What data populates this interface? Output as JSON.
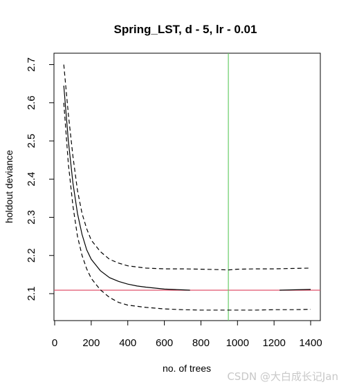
{
  "chart_data": {
    "type": "line",
    "title": "Spring_LST, d - 5, lr - 0.01",
    "xlabel": "no. of trees",
    "ylabel": "holdout deviance",
    "xlim": [
      0,
      1450
    ],
    "ylim": [
      2.08,
      2.7
    ],
    "xticks": [
      0,
      200,
      400,
      600,
      800,
      1000,
      1200,
      1400
    ],
    "yticks": [
      2.1,
      2.2,
      2.3,
      2.4,
      2.5,
      2.6,
      2.7
    ],
    "series": [
      {
        "style": "solid",
        "x": [
          50,
          75,
          100,
          125,
          150,
          175,
          200,
          250,
          300,
          350,
          400,
          450,
          500,
          600,
          700,
          740
        ],
        "y": [
          2.645,
          2.5,
          2.39,
          2.31,
          2.255,
          2.215,
          2.19,
          2.16,
          2.142,
          2.132,
          2.125,
          2.12,
          2.117,
          2.112,
          2.11,
          2.109
        ]
      },
      {
        "style": "solid",
        "x": [
          1230,
          1300,
          1400
        ],
        "y": [
          2.109,
          2.11,
          2.111
        ]
      },
      {
        "style": "dashed",
        "x": [
          50,
          75,
          100,
          125,
          150,
          175,
          200,
          250,
          300,
          350,
          400,
          500,
          600,
          700,
          800,
          900,
          950,
          1000,
          1100,
          1200,
          1300,
          1400
        ],
        "y": [
          2.7,
          2.57,
          2.46,
          2.37,
          2.31,
          2.27,
          2.24,
          2.21,
          2.19,
          2.18,
          2.173,
          2.167,
          2.165,
          2.165,
          2.164,
          2.163,
          2.162,
          2.164,
          2.165,
          2.165,
          2.166,
          2.167
        ]
      },
      {
        "style": "dashed",
        "x": [
          50,
          75,
          100,
          125,
          150,
          175,
          200,
          250,
          300,
          350,
          400,
          500,
          600,
          700,
          800,
          900,
          1000,
          1100,
          1200,
          1300,
          1400
        ],
        "y": [
          2.6,
          2.44,
          2.33,
          2.25,
          2.2,
          2.165,
          2.14,
          2.11,
          2.09,
          2.077,
          2.07,
          2.064,
          2.06,
          2.058,
          2.057,
          2.057,
          2.057,
          2.057,
          2.058,
          2.058,
          2.059
        ]
      }
    ],
    "hlines": [
      {
        "y": 2.109,
        "color": "#e0506a"
      }
    ],
    "vlines": [
      {
        "x": 950,
        "color": "#66cc66"
      }
    ],
    "grid": false,
    "legend": "none"
  },
  "watermark": "CSDN @大白成长记Jan"
}
